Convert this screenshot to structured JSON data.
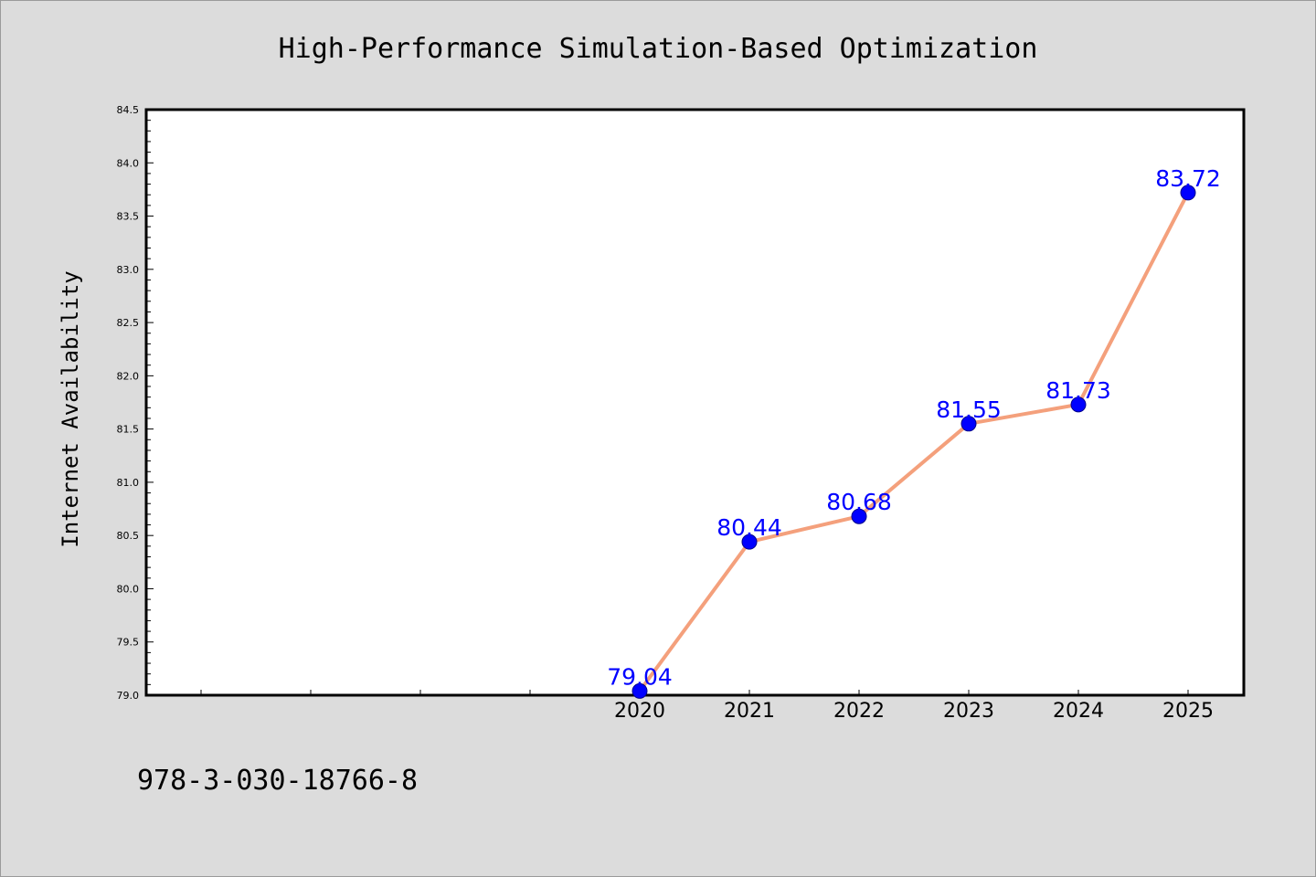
{
  "footer_code": "978-3-030-18766-8",
  "colors": {
    "background": "#dcdcdc",
    "plot_background": "#ffffff",
    "line": "#f4a07c",
    "marker": "#0000ff",
    "label": "#0000ff"
  },
  "chart_data": {
    "type": "line",
    "title": "High-Performance Simulation-Based Optimization",
    "xlabel": "",
    "ylabel": "Internet Availability",
    "x": [
      "2020",
      "2021",
      "2022",
      "2023",
      "2024",
      "2025"
    ],
    "series": [
      {
        "values": [
          79.04,
          80.44,
          80.68,
          81.55,
          81.73,
          83.72
        ]
      }
    ],
    "data_labels": [
      "79.04",
      "80.44",
      "80.68",
      "81.55",
      "81.73",
      "83.72"
    ],
    "ylim": [
      79.0,
      84.5
    ],
    "yticks": [
      "79.0",
      "79.5",
      "80.0",
      "80.5",
      "81.0",
      "81.5",
      "82.0",
      "82.5",
      "83.0",
      "83.5",
      "84.0",
      "84.5"
    ],
    "grid": false,
    "legend": "none"
  }
}
